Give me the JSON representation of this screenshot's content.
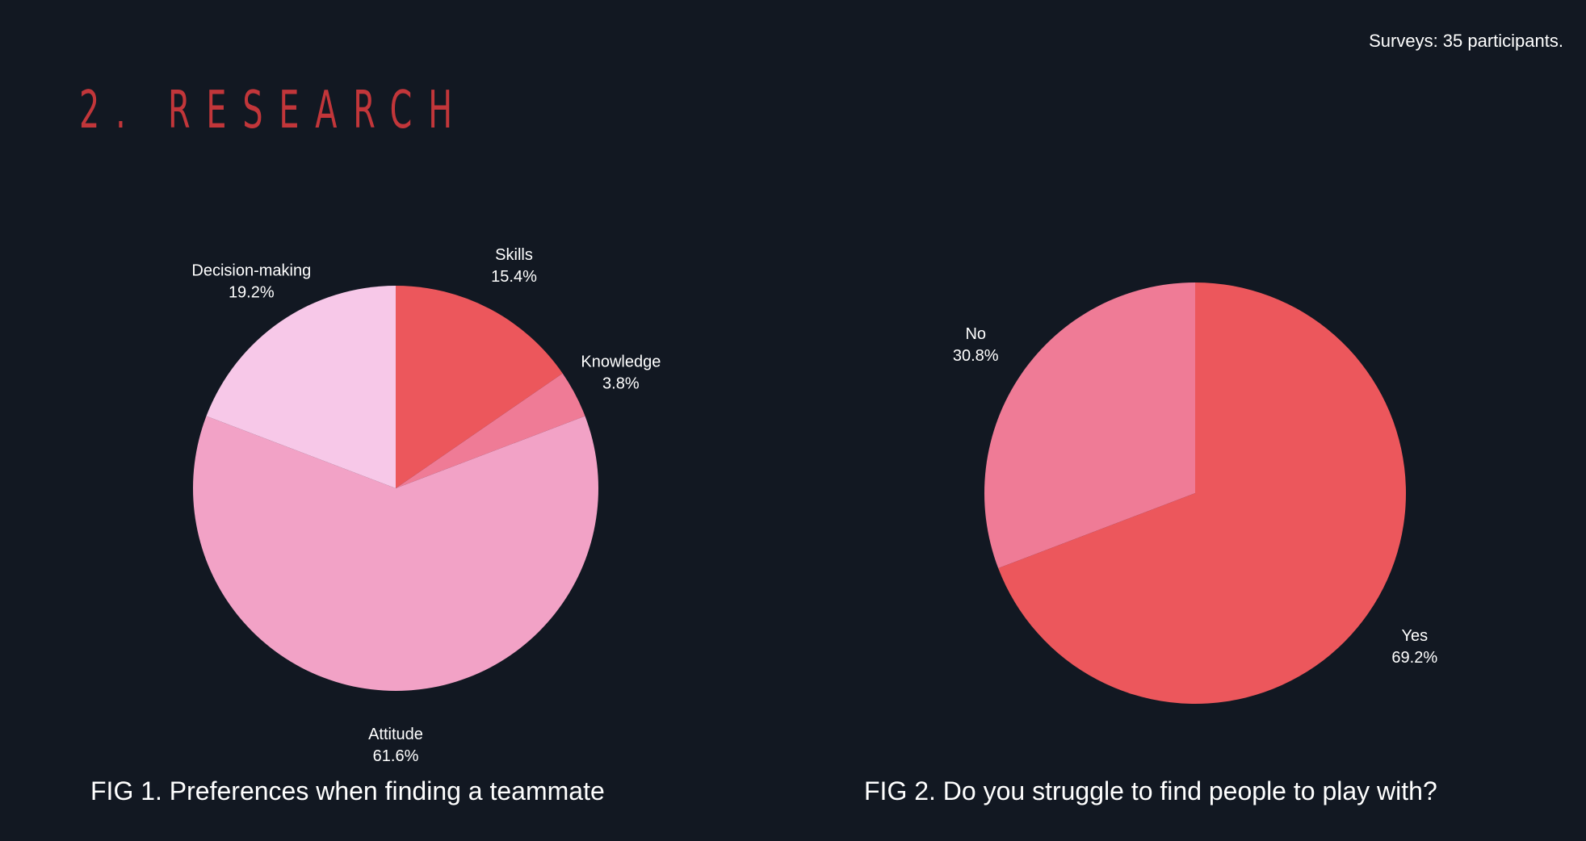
{
  "header": {
    "note": "Surveys: 35 participants.",
    "title": "2. RESEARCH"
  },
  "colors": {
    "background": "#121822",
    "title": "#c2363a"
  },
  "chart_data": [
    {
      "type": "pie",
      "caption": "FIG 1. Preferences when finding a teammate",
      "start_angle_deg": 0,
      "direction": "clockwise",
      "slices": [
        {
          "label": "Skills",
          "value": 15.4,
          "value_label": "15.4%",
          "color": "#ec575c"
        },
        {
          "label": "Knowledge",
          "value": 3.8,
          "value_label": "3.8%",
          "color": "#ef7b96"
        },
        {
          "label": "Attitude",
          "value": 61.6,
          "value_label": "61.6%",
          "color": "#f2a2c6"
        },
        {
          "label": "Decision-making",
          "value": 19.2,
          "value_label": "19.2%",
          "color": "#f7c8e8"
        }
      ]
    },
    {
      "type": "pie",
      "caption": "FIG 2. Do you struggle to find people to play with?",
      "start_angle_deg": 0,
      "direction": "clockwise",
      "slices": [
        {
          "label": "Yes",
          "value": 69.2,
          "value_label": "69.2%",
          "color": "#ec575c"
        },
        {
          "label": "No",
          "value": 30.8,
          "value_label": "30.8%",
          "color": "#ef7b96"
        }
      ]
    }
  ]
}
